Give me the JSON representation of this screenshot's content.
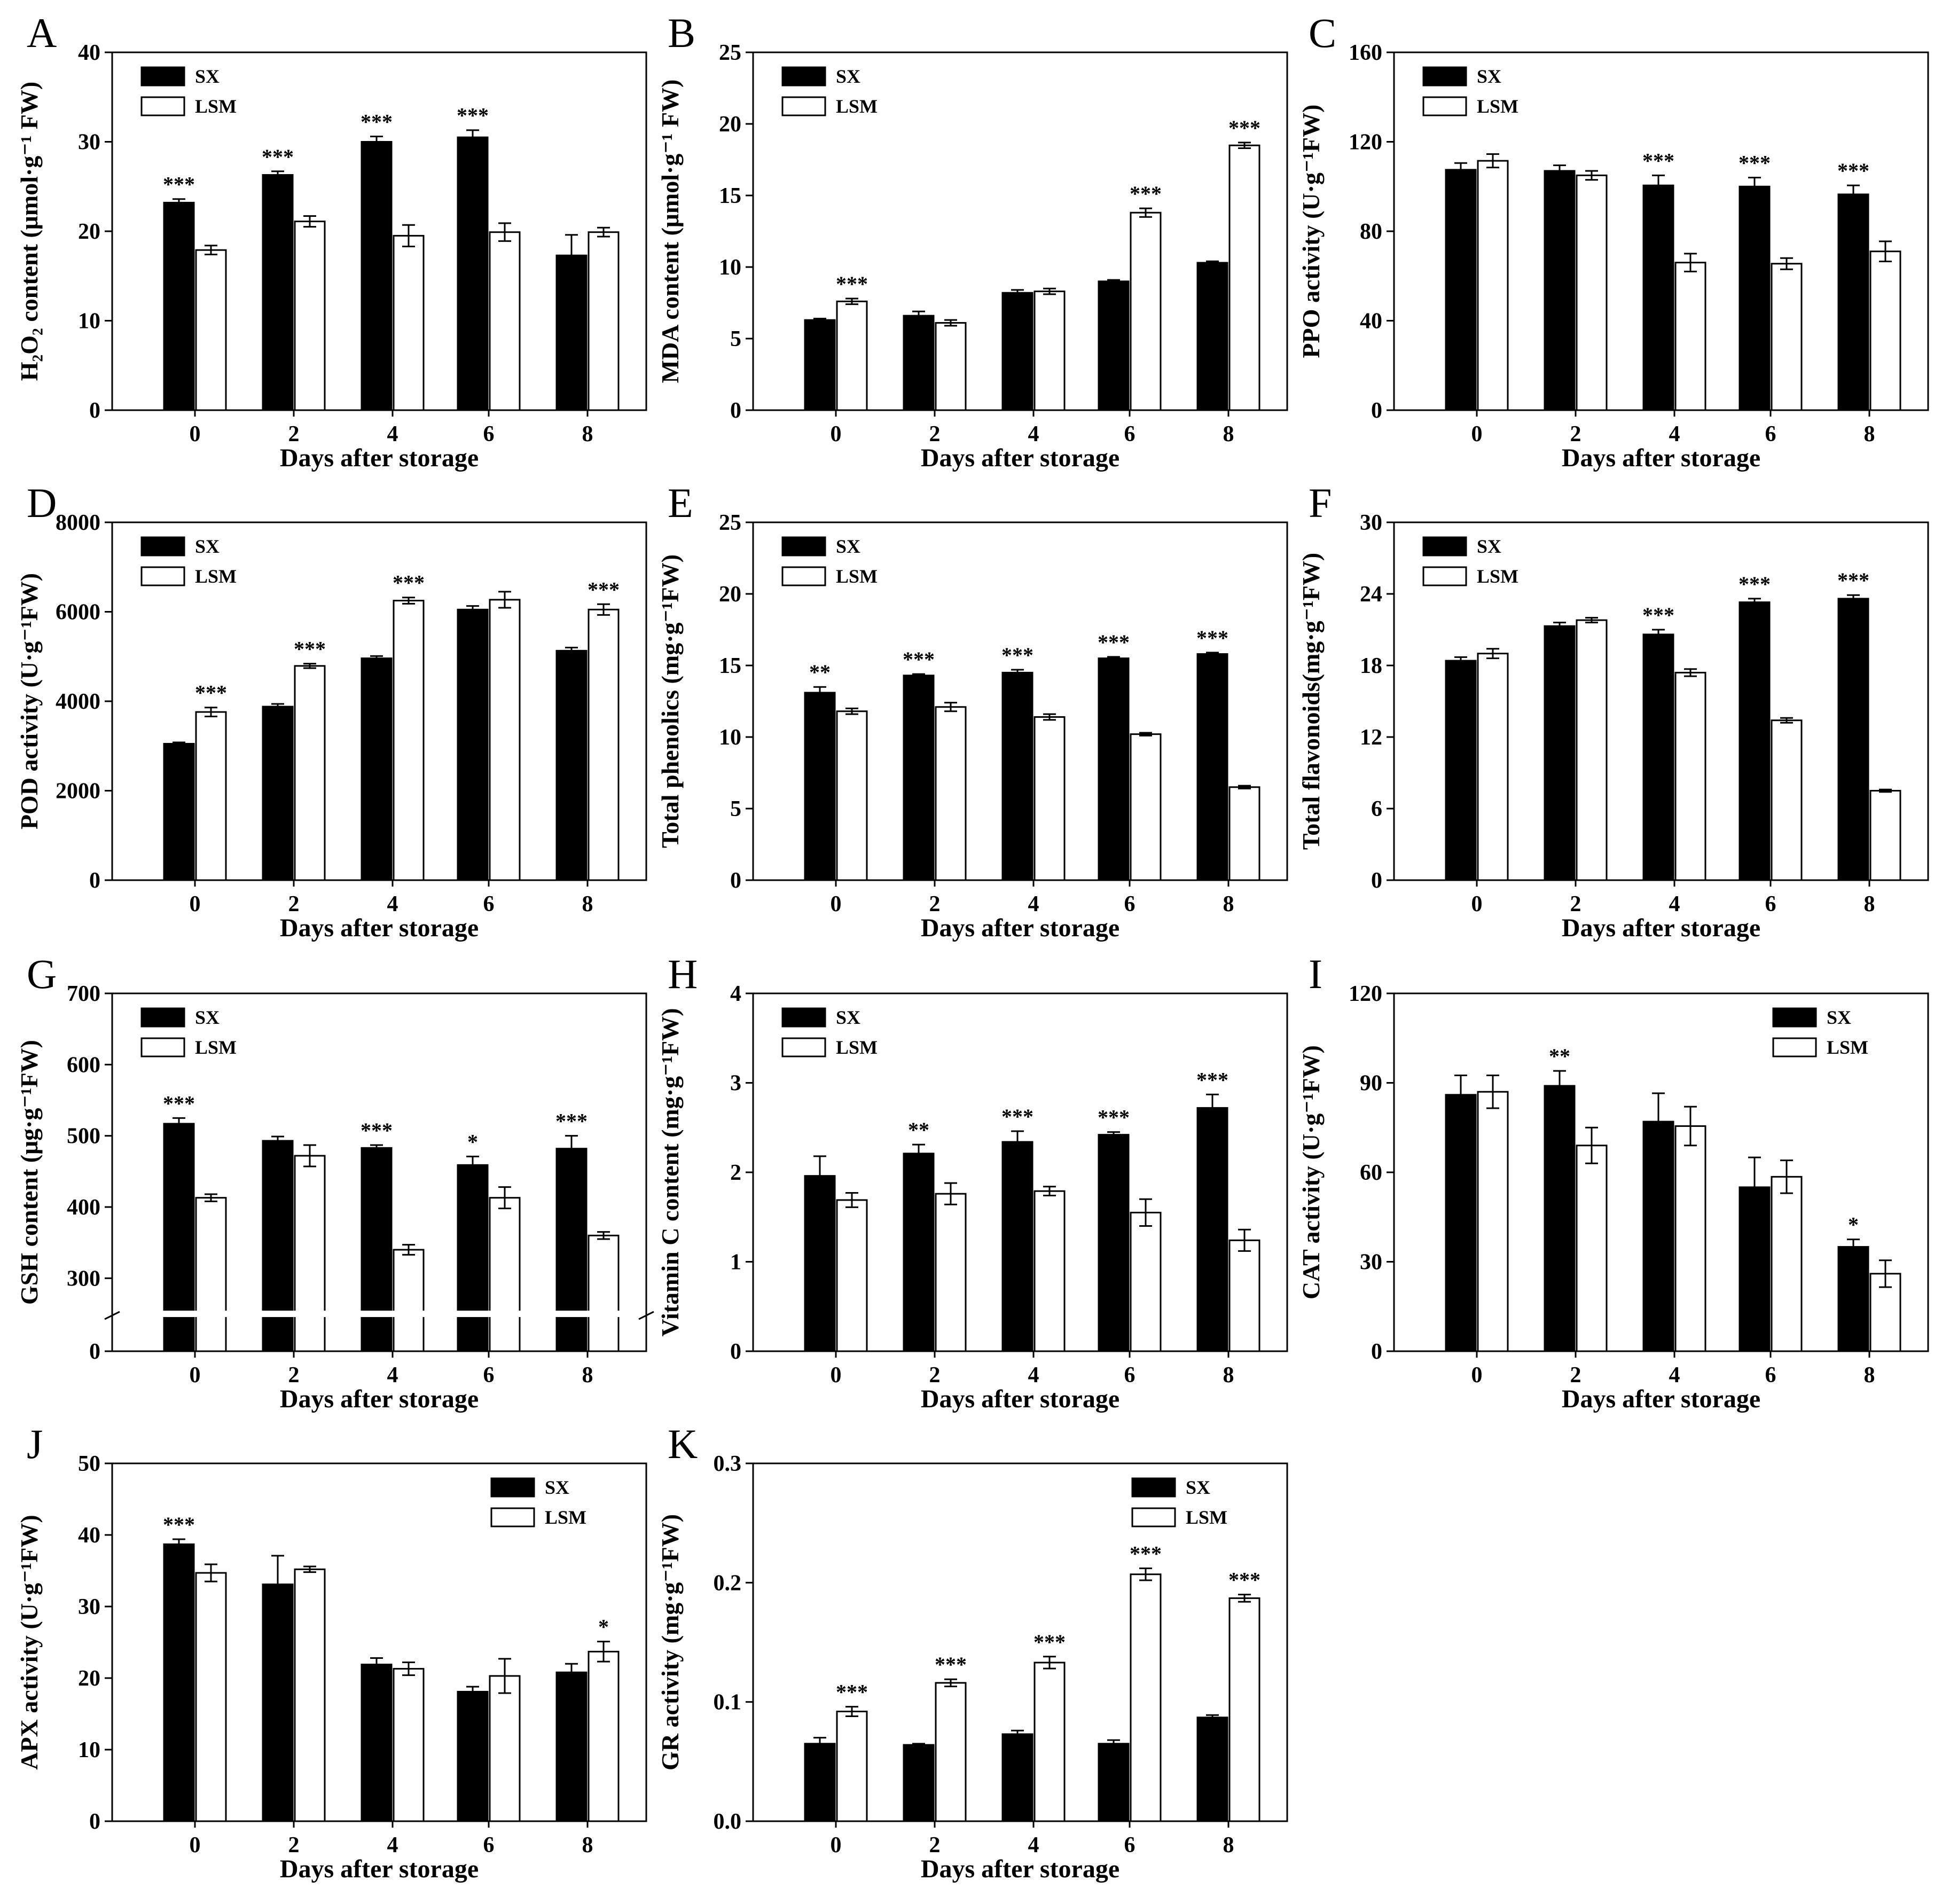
{
  "figure": {
    "series_names": [
      "SX",
      "LSM"
    ],
    "series_colors": {
      "SX": "#000000",
      "LSM": "#ffffff"
    }
  },
  "chart_data": [
    {
      "panel": "A",
      "type": "bar",
      "xlabel": "Days after storage",
      "ylabel": "H₂O₂ content (μmol·g⁻¹ FW)",
      "categories": [
        "0",
        "2",
        "4",
        "6",
        "8"
      ],
      "ylim": [
        0,
        40
      ],
      "yticks": [
        "0",
        "10",
        "20",
        "30",
        "40"
      ],
      "yticks_num": [
        0,
        10,
        20,
        30,
        40
      ],
      "legend_position": "top-left",
      "series": [
        {
          "name": "SX",
          "values": [
            23.2,
            26.3,
            30.0,
            30.5,
            17.3
          ],
          "errors": [
            0.4,
            0.4,
            0.6,
            0.8,
            2.3
          ]
        },
        {
          "name": "LSM",
          "values": [
            17.9,
            21.1,
            19.5,
            19.9,
            19.9
          ],
          "errors": [
            0.5,
            0.6,
            1.2,
            1.0,
            0.5
          ]
        }
      ],
      "significance": [
        {
          "category": "0",
          "series": "SX",
          "label": "***"
        },
        {
          "category": "2",
          "series": "SX",
          "label": "***"
        },
        {
          "category": "4",
          "series": "SX",
          "label": "***"
        },
        {
          "category": "6",
          "series": "SX",
          "label": "***"
        }
      ]
    },
    {
      "panel": "B",
      "type": "bar",
      "xlabel": "Days after storage",
      "ylabel": "MDA content (μmol·g⁻¹ FW)",
      "categories": [
        "0",
        "2",
        "4",
        "6",
        "8"
      ],
      "ylim": [
        0,
        25
      ],
      "yticks": [
        "0",
        "5",
        "10",
        "15",
        "20",
        "25"
      ],
      "yticks_num": [
        0,
        5,
        10,
        15,
        20,
        25
      ],
      "legend_position": "top-left",
      "series": [
        {
          "name": "SX",
          "values": [
            6.3,
            6.6,
            8.2,
            9.0,
            10.3
          ],
          "errors": [
            0.1,
            0.3,
            0.2,
            0.1,
            0.1
          ]
        },
        {
          "name": "LSM",
          "values": [
            7.6,
            6.1,
            8.3,
            13.8,
            18.5
          ],
          "errors": [
            0.2,
            0.2,
            0.2,
            0.3,
            0.2
          ]
        }
      ],
      "significance": [
        {
          "category": "0",
          "series": "LSM",
          "label": "***"
        },
        {
          "category": "6",
          "series": "LSM",
          "label": "***"
        },
        {
          "category": "8",
          "series": "LSM",
          "label": "***"
        }
      ]
    },
    {
      "panel": "C",
      "type": "bar",
      "xlabel": "Days after storage",
      "ylabel": "PPO activity (U·g⁻¹FW)",
      "categories": [
        "0",
        "2",
        "4",
        "6",
        "8"
      ],
      "ylim": [
        0,
        160
      ],
      "yticks": [
        "0",
        "40",
        "80",
        "120",
        "160"
      ],
      "yticks_num": [
        0,
        40,
        80,
        120,
        160
      ],
      "legend_position": "top-left",
      "series": [
        {
          "name": "SX",
          "values": [
            107.5,
            107.0,
            100.5,
            100.0,
            96.5
          ],
          "errors": [
            3.0,
            2.5,
            4.5,
            4.0,
            4.0
          ]
        },
        {
          "name": "LSM",
          "values": [
            111.5,
            105.0,
            66.0,
            65.5,
            71.0
          ],
          "errors": [
            3.0,
            2.0,
            4.0,
            2.5,
            4.5
          ]
        }
      ],
      "significance": [
        {
          "category": "4",
          "series": "SX",
          "label": "***"
        },
        {
          "category": "6",
          "series": "SX",
          "label": "***"
        },
        {
          "category": "8",
          "series": "SX",
          "label": "***"
        }
      ]
    },
    {
      "panel": "D",
      "type": "bar",
      "xlabel": "Days after storage",
      "ylabel": "POD activity (U·g⁻¹FW)",
      "categories": [
        "0",
        "2",
        "4",
        "6",
        "8"
      ],
      "ylim": [
        0,
        8000
      ],
      "yticks": [
        "0",
        "2000",
        "4000",
        "6000",
        "8000"
      ],
      "yticks_num": [
        0,
        2000,
        4000,
        6000,
        8000
      ],
      "legend_position": "top-left",
      "series": [
        {
          "name": "SX",
          "values": [
            3050,
            3880,
            4960,
            6050,
            5130
          ],
          "errors": [
            30,
            60,
            50,
            80,
            70
          ]
        },
        {
          "name": "LSM",
          "values": [
            3760,
            4790,
            6250,
            6270,
            6050
          ],
          "errors": [
            100,
            50,
            70,
            180,
            120
          ]
        }
      ],
      "significance": [
        {
          "category": "0",
          "series": "LSM",
          "label": "***"
        },
        {
          "category": "2",
          "series": "LSM",
          "label": "***"
        },
        {
          "category": "4",
          "series": "LSM",
          "label": "***"
        },
        {
          "category": "8",
          "series": "LSM",
          "label": "***"
        }
      ]
    },
    {
      "panel": "E",
      "type": "bar",
      "xlabel": "Days after storage",
      "ylabel": "Total phenolics (mg·g⁻¹FW)",
      "categories": [
        "0",
        "2",
        "4",
        "6",
        "8"
      ],
      "ylim": [
        0,
        25
      ],
      "yticks": [
        "0",
        "5",
        "10",
        "15",
        "20",
        "25"
      ],
      "yticks_num": [
        0,
        5,
        10,
        15,
        20,
        25
      ],
      "legend_position": "top-left",
      "series": [
        {
          "name": "SX",
          "values": [
            13.1,
            14.3,
            14.5,
            15.5,
            15.8
          ],
          "errors": [
            0.4,
            0.1,
            0.2,
            0.1,
            0.1
          ]
        },
        {
          "name": "LSM",
          "values": [
            11.8,
            12.1,
            11.4,
            10.2,
            6.5
          ],
          "errors": [
            0.2,
            0.3,
            0.2,
            0.1,
            0.1
          ]
        }
      ],
      "significance": [
        {
          "category": "0",
          "series": "SX",
          "label": "**"
        },
        {
          "category": "2",
          "series": "SX",
          "label": "***"
        },
        {
          "category": "4",
          "series": "SX",
          "label": "***"
        },
        {
          "category": "6",
          "series": "SX",
          "label": "***"
        },
        {
          "category": "8",
          "series": "SX",
          "label": "***"
        }
      ]
    },
    {
      "panel": "F",
      "type": "bar",
      "xlabel": "Days after storage",
      "ylabel": "Total flavonoids(mg·g⁻¹FW)",
      "categories": [
        "0",
        "2",
        "4",
        "6",
        "8"
      ],
      "ylim": [
        0,
        30
      ],
      "yticks": [
        "0",
        "6",
        "12",
        "18",
        "24",
        "30"
      ],
      "yticks_num": [
        0,
        6,
        12,
        18,
        24,
        30
      ],
      "legend_position": "top-left",
      "series": [
        {
          "name": "SX",
          "values": [
            18.4,
            21.3,
            20.6,
            23.3,
            23.6
          ],
          "errors": [
            0.3,
            0.3,
            0.4,
            0.3,
            0.3
          ]
        },
        {
          "name": "LSM",
          "values": [
            19.0,
            21.8,
            17.4,
            13.4,
            7.5
          ],
          "errors": [
            0.4,
            0.2,
            0.3,
            0.2,
            0.1
          ]
        }
      ],
      "significance": [
        {
          "category": "4",
          "series": "SX",
          "label": "***"
        },
        {
          "category": "6",
          "series": "SX",
          "label": "***"
        },
        {
          "category": "8",
          "series": "SX",
          "label": "***"
        }
      ]
    },
    {
      "panel": "G",
      "type": "bar",
      "xlabel": "Days after storage",
      "ylabel": "GSH content (μg·g⁻¹FW)",
      "categories": [
        "0",
        "2",
        "4",
        "6",
        "8"
      ],
      "ylim": [
        0,
        700
      ],
      "yticks": [
        "0",
        "300",
        "400",
        "500",
        "600",
        "700"
      ],
      "yticks_num": [
        0,
        300,
        400,
        500,
        600,
        700
      ],
      "axis_break": true,
      "legend_position": "top-left",
      "series": [
        {
          "name": "SX",
          "values": [
            517,
            493,
            483,
            459,
            482
          ],
          "errors": [
            8,
            6,
            4,
            12,
            18
          ]
        },
        {
          "name": "LSM",
          "values": [
            413,
            472,
            340,
            413,
            360
          ],
          "errors": [
            5,
            15,
            7,
            15,
            5
          ]
        }
      ],
      "significance": [
        {
          "category": "0",
          "series": "SX",
          "label": "***"
        },
        {
          "category": "4",
          "series": "SX",
          "label": "***"
        },
        {
          "category": "6",
          "series": "SX",
          "label": "*"
        },
        {
          "category": "8",
          "series": "SX",
          "label": "***"
        }
      ]
    },
    {
      "panel": "H",
      "type": "bar",
      "xlabel": "Days after storage",
      "ylabel": "Vitamin C content (mg·g⁻¹FW)",
      "categories": [
        "0",
        "2",
        "4",
        "6",
        "8"
      ],
      "ylim": [
        0,
        4
      ],
      "yticks": [
        "0",
        "1",
        "2",
        "3",
        "4"
      ],
      "yticks_num": [
        0,
        1,
        2,
        3,
        4
      ],
      "legend_position": "top-left",
      "series": [
        {
          "name": "SX",
          "values": [
            1.96,
            2.21,
            2.34,
            2.42,
            2.72
          ],
          "errors": [
            0.22,
            0.1,
            0.12,
            0.03,
            0.15
          ]
        },
        {
          "name": "LSM",
          "values": [
            1.69,
            1.76,
            1.79,
            1.55,
            1.24
          ],
          "errors": [
            0.08,
            0.12,
            0.05,
            0.15,
            0.12
          ]
        }
      ],
      "significance": [
        {
          "category": "2",
          "series": "SX",
          "label": "**"
        },
        {
          "category": "4",
          "series": "SX",
          "label": "***"
        },
        {
          "category": "6",
          "series": "SX",
          "label": "***"
        },
        {
          "category": "8",
          "series": "SX",
          "label": "***"
        }
      ]
    },
    {
      "panel": "I",
      "type": "bar",
      "xlabel": "Days after storage",
      "ylabel": "CAT  activity (U·g⁻¹FW)",
      "categories": [
        "0",
        "2",
        "4",
        "6",
        "8"
      ],
      "ylim": [
        0,
        120
      ],
      "yticks": [
        "0",
        "30",
        "60",
        "90",
        "120"
      ],
      "yticks_num": [
        0,
        30,
        60,
        90,
        120
      ],
      "legend_position": "top-right",
      "series": [
        {
          "name": "SX",
          "values": [
            86,
            89,
            77,
            55,
            35
          ],
          "errors": [
            6.5,
            5,
            9.5,
            10,
            2.5
          ]
        },
        {
          "name": "LSM",
          "values": [
            87,
            69,
            75.5,
            58.5,
            26
          ],
          "errors": [
            5.5,
            6,
            6.5,
            5.5,
            4.5
          ]
        }
      ],
      "significance": [
        {
          "category": "2",
          "series": "SX",
          "label": "**"
        },
        {
          "category": "8",
          "series": "SX",
          "label": "*"
        }
      ]
    },
    {
      "panel": "J",
      "type": "bar",
      "xlabel": "Days after storage",
      "ylabel": "APX activity (U·g⁻¹FW)",
      "categories": [
        "0",
        "2",
        "4",
        "6",
        "8"
      ],
      "ylim": [
        0,
        50
      ],
      "yticks": [
        "0",
        "10",
        "20",
        "30",
        "40",
        "50"
      ],
      "yticks_num": [
        0,
        10,
        20,
        30,
        40,
        50
      ],
      "legend_position": "top-right",
      "series": [
        {
          "name": "SX",
          "values": [
            38.7,
            33.1,
            21.9,
            18.1,
            20.8
          ],
          "errors": [
            0.7,
            4.0,
            0.9,
            0.7,
            1.2
          ]
        },
        {
          "name": "LSM",
          "values": [
            34.7,
            35.2,
            21.3,
            20.3,
            23.7
          ],
          "errors": [
            1.2,
            0.4,
            0.9,
            2.4,
            1.4
          ]
        }
      ],
      "significance": [
        {
          "category": "0",
          "series": "SX",
          "label": "***"
        },
        {
          "category": "8",
          "series": "LSM",
          "label": "*"
        }
      ]
    },
    {
      "panel": "K",
      "type": "bar",
      "xlabel": "Days after storage",
      "ylabel": "GR activity (mg·g⁻¹FW)",
      "categories": [
        "0",
        "2",
        "4",
        "6",
        "8"
      ],
      "ylim": [
        0,
        0.3
      ],
      "yticks": [
        "0.0",
        "0.1",
        "0.2",
        "0.3"
      ],
      "yticks_num": [
        0,
        0.1,
        0.2,
        0.3
      ],
      "legend_position": "top-right",
      "series": [
        {
          "name": "SX",
          "values": [
            0.065,
            0.064,
            0.073,
            0.065,
            0.087
          ],
          "errors": [
            0.005,
            0.001,
            0.003,
            0.003,
            0.002
          ]
        },
        {
          "name": "LSM",
          "values": [
            0.092,
            0.116,
            0.133,
            0.207,
            0.187
          ],
          "errors": [
            0.004,
            0.003,
            0.005,
            0.005,
            0.003
          ]
        }
      ],
      "significance": [
        {
          "category": "0",
          "series": "LSM",
          "label": "***"
        },
        {
          "category": "2",
          "series": "LSM",
          "label": "***"
        },
        {
          "category": "4",
          "series": "LSM",
          "label": "***"
        },
        {
          "category": "6",
          "series": "LSM",
          "label": "***"
        },
        {
          "category": "8",
          "series": "LSM",
          "label": "***"
        }
      ]
    }
  ]
}
